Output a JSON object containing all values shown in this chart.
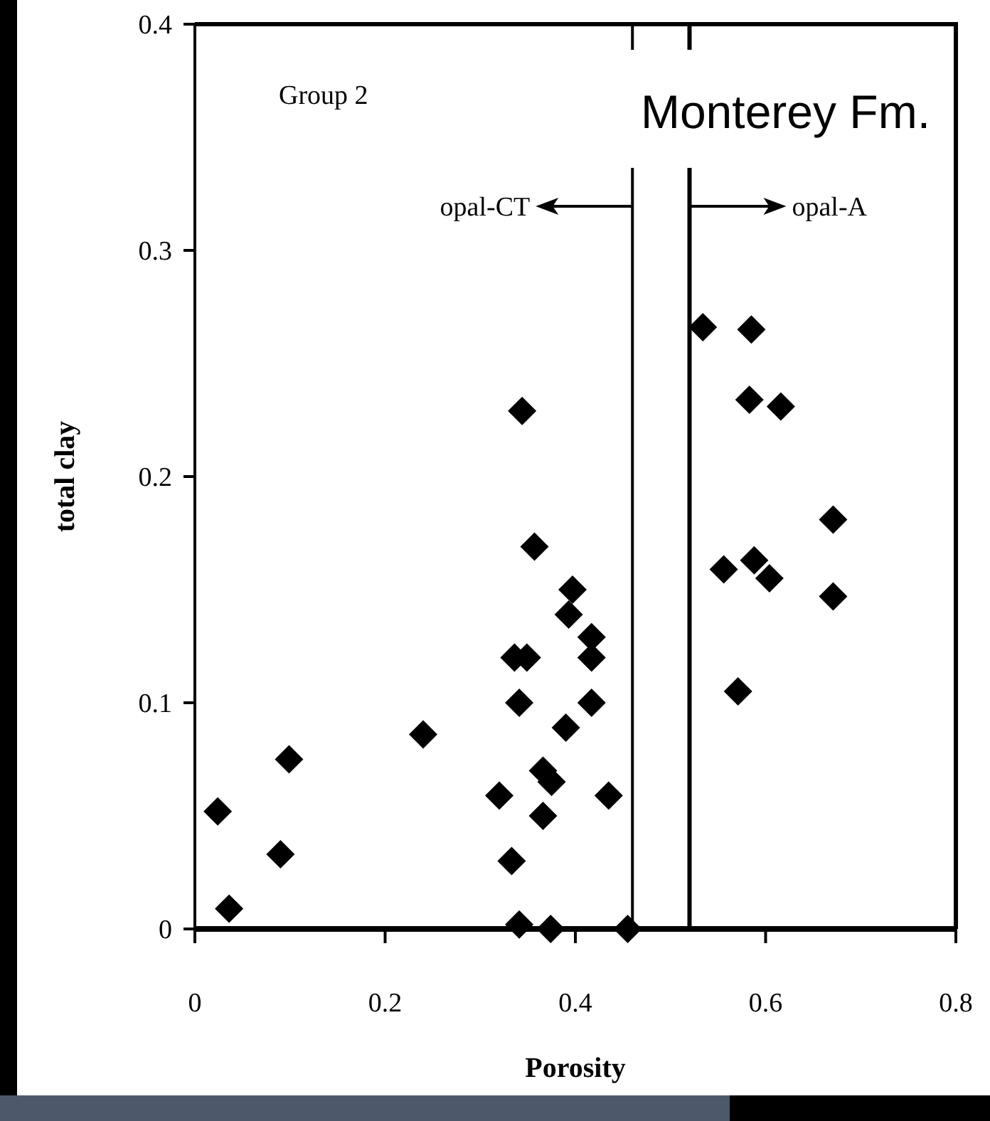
{
  "chart_data": {
    "type": "scatter",
    "xlabel": "Porosity",
    "ylabel": "total clay",
    "xlim": [
      0,
      0.8
    ],
    "xticks": [
      0,
      0.2,
      0.4,
      0.6,
      0.8
    ],
    "ylim": [
      0,
      0.4
    ],
    "yticks": [
      0,
      0.1,
      0.2,
      0.3,
      0.4
    ],
    "grid": false,
    "marker": "diamond",
    "series": [
      {
        "color": "#000000",
        "x": [
          0.024,
          0.036,
          0.09,
          0.099,
          0.24,
          0.32,
          0.333,
          0.341,
          0.341,
          0.336,
          0.349,
          0.357,
          0.366,
          0.366,
          0.375,
          0.374,
          0.39,
          0.393,
          0.397,
          0.417,
          0.417,
          0.417,
          0.435,
          0.455,
          0.344,
          0.534,
          0.585,
          0.583,
          0.616,
          0.556,
          0.588,
          0.604,
          0.671,
          0.671,
          0.571
        ],
        "values": [
          0.052,
          0.009,
          0.033,
          0.075,
          0.086,
          0.059,
          0.03,
          0.002,
          0.1,
          0.12,
          0.12,
          0.169,
          0.05,
          0.07,
          0.065,
          0,
          0.089,
          0.139,
          0.15,
          0.129,
          0.12,
          0.1,
          0.059,
          0,
          0.229,
          0.266,
          0.265,
          0.234,
          0.231,
          0.159,
          0.163,
          0.155,
          0.181,
          0.147,
          0.105
        ]
      }
    ],
    "ref_lines": [
      {
        "axis": "x",
        "value": 0.46,
        "label": "opal-CT",
        "color": "#000000"
      },
      {
        "axis": "x",
        "value": 0.52,
        "label": "opal-A",
        "color": "#000000"
      }
    ],
    "annotations": [
      "Group 2",
      "Monterey Fm."
    ]
  }
}
